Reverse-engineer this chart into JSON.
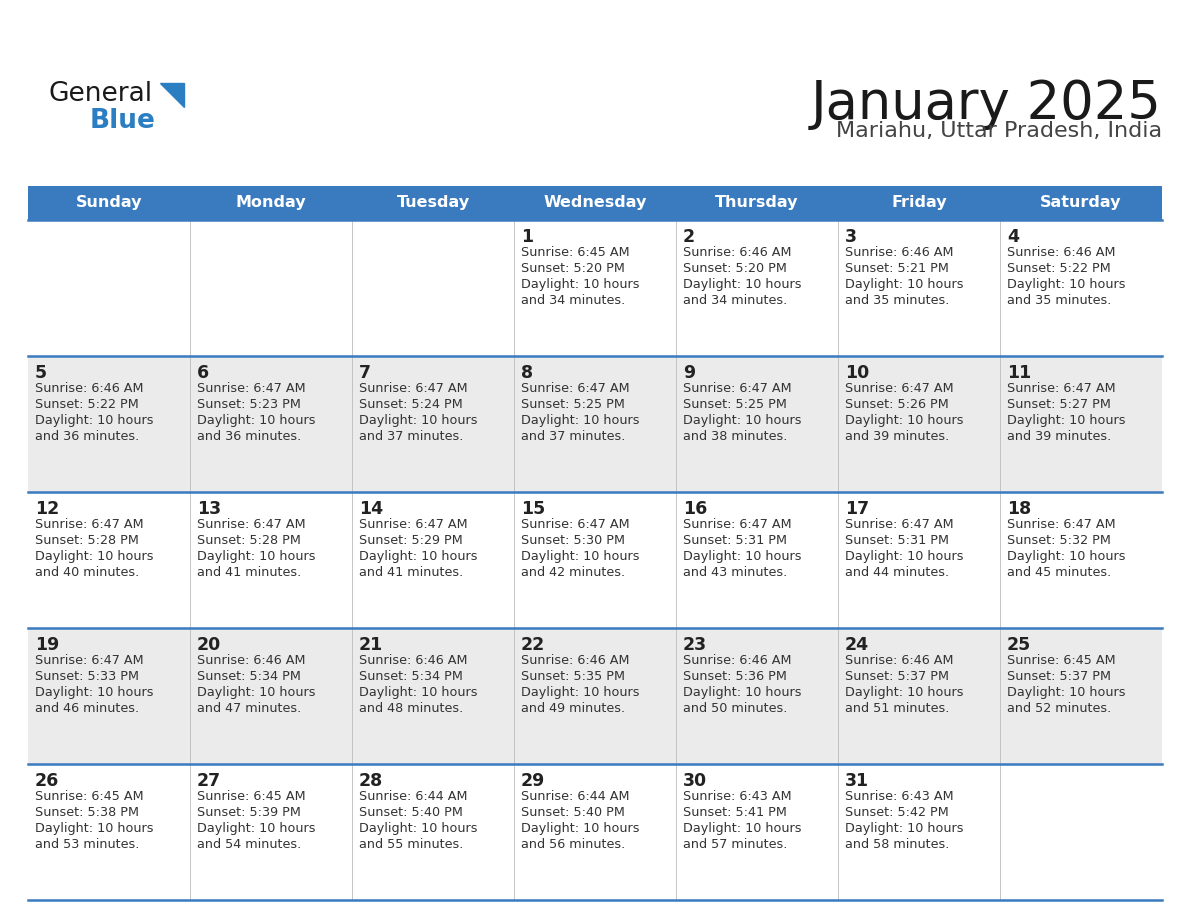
{
  "title": "January 2025",
  "subtitle": "Mariahu, Uttar Pradesh, India",
  "header_bg": "#3a7abf",
  "header_text": "#ffffff",
  "row_bg_even": "#ebebeb",
  "row_bg_odd": "#ffffff",
  "day_headers": [
    "Sunday",
    "Monday",
    "Tuesday",
    "Wednesday",
    "Thursday",
    "Friday",
    "Saturday"
  ],
  "calendar_data": [
    [
      {
        "day": "",
        "sunrise": "",
        "sunset": "",
        "daylight": ""
      },
      {
        "day": "",
        "sunrise": "",
        "sunset": "",
        "daylight": ""
      },
      {
        "day": "",
        "sunrise": "",
        "sunset": "",
        "daylight": ""
      },
      {
        "day": "1",
        "sunrise": "6:45 AM",
        "sunset": "5:20 PM",
        "daylight": "10 hours and 34 minutes."
      },
      {
        "day": "2",
        "sunrise": "6:46 AM",
        "sunset": "5:20 PM",
        "daylight": "10 hours and 34 minutes."
      },
      {
        "day": "3",
        "sunrise": "6:46 AM",
        "sunset": "5:21 PM",
        "daylight": "10 hours and 35 minutes."
      },
      {
        "day": "4",
        "sunrise": "6:46 AM",
        "sunset": "5:22 PM",
        "daylight": "10 hours and 35 minutes."
      }
    ],
    [
      {
        "day": "5",
        "sunrise": "6:46 AM",
        "sunset": "5:22 PM",
        "daylight": "10 hours and 36 minutes."
      },
      {
        "day": "6",
        "sunrise": "6:47 AM",
        "sunset": "5:23 PM",
        "daylight": "10 hours and 36 minutes."
      },
      {
        "day": "7",
        "sunrise": "6:47 AM",
        "sunset": "5:24 PM",
        "daylight": "10 hours and 37 minutes."
      },
      {
        "day": "8",
        "sunrise": "6:47 AM",
        "sunset": "5:25 PM",
        "daylight": "10 hours and 37 minutes."
      },
      {
        "day": "9",
        "sunrise": "6:47 AM",
        "sunset": "5:25 PM",
        "daylight": "10 hours and 38 minutes."
      },
      {
        "day": "10",
        "sunrise": "6:47 AM",
        "sunset": "5:26 PM",
        "daylight": "10 hours and 39 minutes."
      },
      {
        "day": "11",
        "sunrise": "6:47 AM",
        "sunset": "5:27 PM",
        "daylight": "10 hours and 39 minutes."
      }
    ],
    [
      {
        "day": "12",
        "sunrise": "6:47 AM",
        "sunset": "5:28 PM",
        "daylight": "10 hours and 40 minutes."
      },
      {
        "day": "13",
        "sunrise": "6:47 AM",
        "sunset": "5:28 PM",
        "daylight": "10 hours and 41 minutes."
      },
      {
        "day": "14",
        "sunrise": "6:47 AM",
        "sunset": "5:29 PM",
        "daylight": "10 hours and 41 minutes."
      },
      {
        "day": "15",
        "sunrise": "6:47 AM",
        "sunset": "5:30 PM",
        "daylight": "10 hours and 42 minutes."
      },
      {
        "day": "16",
        "sunrise": "6:47 AM",
        "sunset": "5:31 PM",
        "daylight": "10 hours and 43 minutes."
      },
      {
        "day": "17",
        "sunrise": "6:47 AM",
        "sunset": "5:31 PM",
        "daylight": "10 hours and 44 minutes."
      },
      {
        "day": "18",
        "sunrise": "6:47 AM",
        "sunset": "5:32 PM",
        "daylight": "10 hours and 45 minutes."
      }
    ],
    [
      {
        "day": "19",
        "sunrise": "6:47 AM",
        "sunset": "5:33 PM",
        "daylight": "10 hours and 46 minutes."
      },
      {
        "day": "20",
        "sunrise": "6:46 AM",
        "sunset": "5:34 PM",
        "daylight": "10 hours and 47 minutes."
      },
      {
        "day": "21",
        "sunrise": "6:46 AM",
        "sunset": "5:34 PM",
        "daylight": "10 hours and 48 minutes."
      },
      {
        "day": "22",
        "sunrise": "6:46 AM",
        "sunset": "5:35 PM",
        "daylight": "10 hours and 49 minutes."
      },
      {
        "day": "23",
        "sunrise": "6:46 AM",
        "sunset": "5:36 PM",
        "daylight": "10 hours and 50 minutes."
      },
      {
        "day": "24",
        "sunrise": "6:46 AM",
        "sunset": "5:37 PM",
        "daylight": "10 hours and 51 minutes."
      },
      {
        "day": "25",
        "sunrise": "6:45 AM",
        "sunset": "5:37 PM",
        "daylight": "10 hours and 52 minutes."
      }
    ],
    [
      {
        "day": "26",
        "sunrise": "6:45 AM",
        "sunset": "5:38 PM",
        "daylight": "10 hours and 53 minutes."
      },
      {
        "day": "27",
        "sunrise": "6:45 AM",
        "sunset": "5:39 PM",
        "daylight": "10 hours and 54 minutes."
      },
      {
        "day": "28",
        "sunrise": "6:44 AM",
        "sunset": "5:40 PM",
        "daylight": "10 hours and 55 minutes."
      },
      {
        "day": "29",
        "sunrise": "6:44 AM",
        "sunset": "5:40 PM",
        "daylight": "10 hours and 56 minutes."
      },
      {
        "day": "30",
        "sunrise": "6:43 AM",
        "sunset": "5:41 PM",
        "daylight": "10 hours and 57 minutes."
      },
      {
        "day": "31",
        "sunrise": "6:43 AM",
        "sunset": "5:42 PM",
        "daylight": "10 hours and 58 minutes."
      },
      {
        "day": "",
        "sunrise": "",
        "sunset": "",
        "daylight": ""
      }
    ]
  ],
  "logo_general_color": "#1a1a1a",
  "logo_blue_color": "#2b7ec1",
  "logo_triangle_color": "#2b7ec1",
  "border_line_color": "#3a7abf",
  "cell_text_color": "#333333",
  "day_num_color": "#222222",
  "title_color": "#1a1a1a",
  "subtitle_color": "#444444"
}
